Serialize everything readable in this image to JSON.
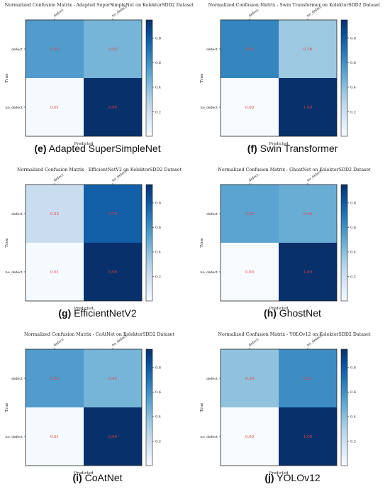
{
  "labels": {
    "predicted": "Predicted",
    "true": "True",
    "classes": [
      "defect",
      "no_defect"
    ]
  },
  "colorbar": {
    "ticks": [
      "0.8",
      "0.6",
      "0.4",
      "0.2"
    ],
    "tick_values": [
      0.8,
      0.6,
      0.4,
      0.2
    ],
    "range": [
      0.0,
      0.95
    ]
  },
  "colors": {
    "cmap": "Blues",
    "annotation": "#e8423c"
  },
  "chart_data": [
    {
      "type": "heatmap",
      "title": "Normalized Confusion Matrix - Adapted SuperSimpleNet on KolektorSDD2 Dataset",
      "caption_tag": "(e)",
      "caption_text": "Adapted SuperSimpleNet",
      "xlabel": "Predicted",
      "ylabel": "True",
      "rows": [
        "defect",
        "no_defect"
      ],
      "cols": [
        "defect",
        "no_defect"
      ],
      "values": [
        [
          0.55,
          0.45
        ],
        [
          0.01,
          0.99
        ]
      ],
      "cell_labels": [
        [
          "0.55",
          "0.45"
        ],
        [
          "0.01",
          "0.99"
        ]
      ]
    },
    {
      "type": "heatmap",
      "title": "Normalized Confusion Matrix - Swin Transformer on KolektorSDD2 Dataset",
      "caption_tag": "(f)",
      "caption_text": "Swin Transformer",
      "xlabel": "Predicted",
      "ylabel": "True",
      "rows": [
        "defect",
        "no_defect"
      ],
      "cols": [
        "defect",
        "no_defect"
      ],
      "values": [
        [
          0.64,
          0.36
        ],
        [
          0.0,
          1.0
        ]
      ],
      "cell_labels": [
        [
          "0.64",
          "0.36"
        ],
        [
          "0.00",
          "1.00"
        ]
      ]
    },
    {
      "type": "heatmap",
      "title": "Normalized Confusion Matrix - EfficientNetV2 on KolektorSDD2 Dataset",
      "caption_tag": "(g)",
      "caption_text": "EfficientNetV2",
      "xlabel": "Predicted",
      "ylabel": "True",
      "rows": [
        "defect",
        "no_defect"
      ],
      "cols": [
        "defect",
        "no_defect"
      ],
      "values": [
        [
          0.22,
          0.78
        ],
        [
          0.01,
          0.99
        ]
      ],
      "cell_labels": [
        [
          "0.22",
          "0.78"
        ],
        [
          "0.01",
          "0.99"
        ]
      ]
    },
    {
      "type": "heatmap",
      "title": "Normalized Confusion Matrix - GhostNet on KolektorSDD2 Dataset",
      "caption_tag": "(h)",
      "caption_text": "GhostNet",
      "xlabel": "Predicted",
      "ylabel": "True",
      "rows": [
        "defect",
        "no_defect"
      ],
      "cols": [
        "defect",
        "no_defect"
      ],
      "values": [
        [
          0.52,
          0.48
        ],
        [
          0.0,
          1.0
        ]
      ],
      "cell_labels": [
        [
          "0.52",
          "0.48"
        ],
        [
          "0.00",
          "1.00"
        ]
      ]
    },
    {
      "type": "heatmap",
      "title": "Normalized Confusion Matrix - CoAtNet on KolektorSDD2 Dataset",
      "caption_tag": "(i)",
      "caption_text": "CoAtNet",
      "xlabel": "Predicted",
      "ylabel": "True",
      "rows": [
        "defect",
        "no_defect"
      ],
      "cols": [
        "defect",
        "no_defect"
      ],
      "values": [
        [
          0.55,
          0.45
        ],
        [
          0.01,
          0.99
        ]
      ],
      "cell_labels": [
        [
          "0.55",
          "0.45"
        ],
        [
          "0.01",
          "0.99"
        ]
      ]
    },
    {
      "type": "heatmap",
      "title": "Normalized Confusion Matrix - YOLOv12 on KolektorSDD2 Dataset",
      "caption_tag": "(j)",
      "caption_text": "YOLOv12",
      "xlabel": "Predicted",
      "ylabel": "True",
      "rows": [
        "defect",
        "no_defect"
      ],
      "cols": [
        "defect",
        "no_defect"
      ],
      "values": [
        [
          0.39,
          0.61
        ],
        [
          0.0,
          1.0
        ]
      ],
      "cell_labels": [
        [
          "0.39",
          "0.61"
        ],
        [
          "0.00",
          "1.00"
        ]
      ]
    }
  ]
}
